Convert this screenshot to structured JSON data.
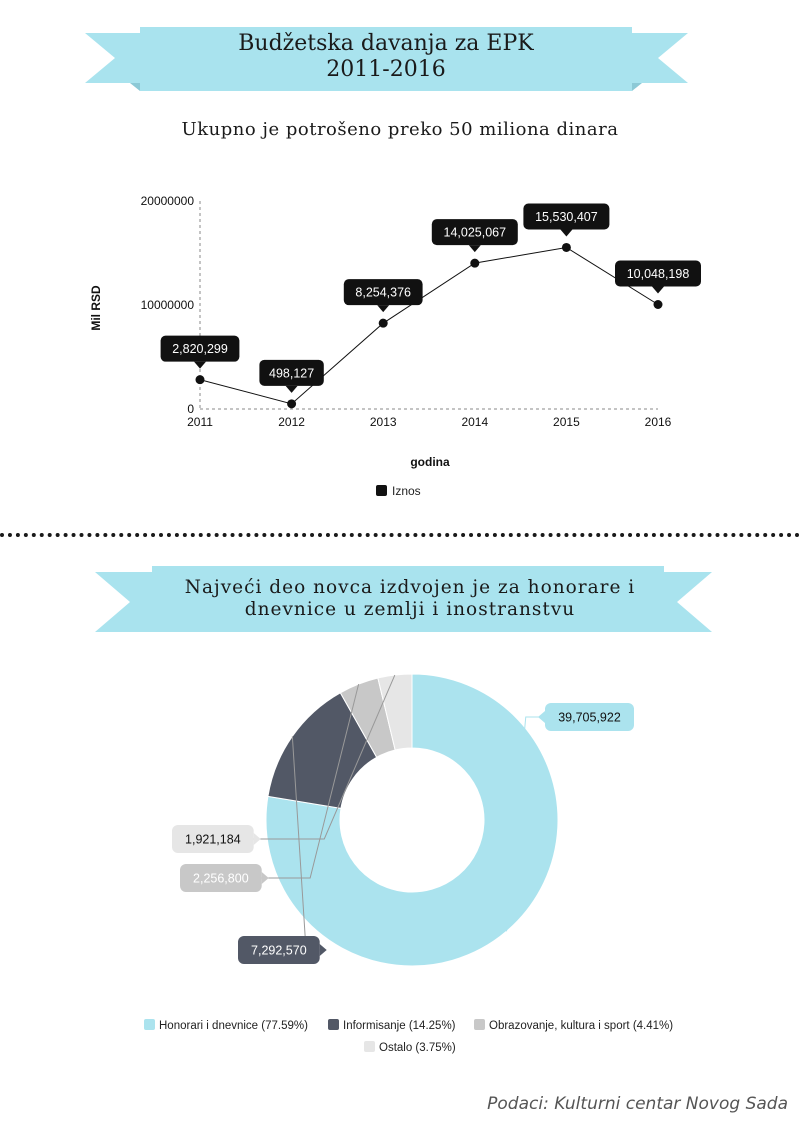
{
  "banner1": {
    "line1": "Budžetska davanja za EPK",
    "line2": "2011-2016"
  },
  "subtitle": "Ukupno je potrošeno preko 50 miliona dinara",
  "banner2": {
    "line1": "Najveći deo novca izdvojen je za honorare i",
    "line2": "dnevnice u zemlji i inostranstvu"
  },
  "credit": "Podaci: Kulturni centar Novog Sada",
  "colors": {
    "ribbon": "#a9e3ee",
    "line": "#111111",
    "grid": "#999999"
  },
  "chart_data": [
    {
      "type": "line",
      "x": [
        "2011",
        "2012",
        "2013",
        "2014",
        "2015",
        "2016"
      ],
      "series": [
        {
          "name": "Iznos",
          "values": [
            2820299,
            498127,
            8254376,
            14025067,
            15530407,
            10048198
          ],
          "labels": [
            "2,820,299",
            "498,127",
            "8,254,376",
            "14,025,067",
            "15,530,407",
            "10,048,198"
          ]
        }
      ],
      "xlabel": "godina",
      "ylabel": "Mil RSD",
      "yticks": [
        "0",
        "10000000",
        "20000000"
      ],
      "ylim": [
        0,
        20000000
      ],
      "legend": "bottom"
    },
    {
      "type": "pie",
      "donut": true,
      "slices": [
        {
          "name": "Honorari i dnevnice",
          "percent": "77.59%",
          "value": 39705922,
          "label": "39,705,922",
          "color": "#abe3ee"
        },
        {
          "name": "Informisanje",
          "percent": "14.25%",
          "value": 7292570,
          "label": "7,292,570",
          "color": "#525866"
        },
        {
          "name": "Obrazovanje, kultura i sport",
          "percent": "4.41%",
          "value": 2256800,
          "label": "2,256,800",
          "color": "#c8c8c8"
        },
        {
          "name": "Ostalo",
          "percent": "3.75%",
          "value": 1921184,
          "label": "1,921,184",
          "color": "#e6e6e6"
        }
      ],
      "legend": "bottom"
    }
  ]
}
